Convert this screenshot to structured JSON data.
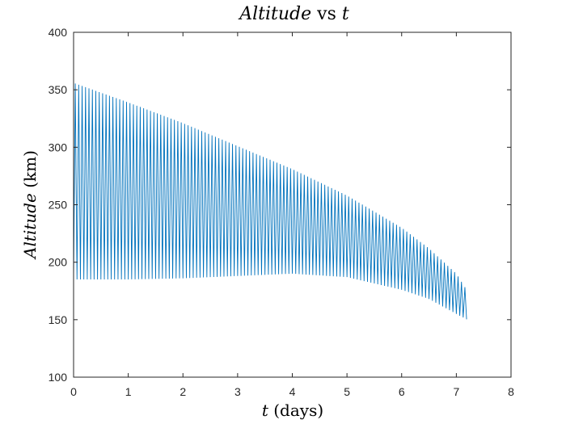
{
  "chart_data": {
    "type": "line",
    "title": {
      "italic": "Altitude",
      "rest": " vs ",
      "var": "t"
    },
    "xlabel": {
      "var": "t",
      "rest": " (days)"
    },
    "ylabel": {
      "italic": "Altitude",
      "rest": " (km)"
    },
    "xlim": [
      0,
      8
    ],
    "ylim": [
      100,
      400
    ],
    "xticks": [
      "0",
      "1",
      "2",
      "3",
      "4",
      "5",
      "6",
      "7",
      "8"
    ],
    "yticks": [
      "100",
      "150",
      "200",
      "250",
      "300",
      "350",
      "400"
    ],
    "grid": false,
    "series": [
      {
        "color": "#0072BD",
        "oscillation": {
          "t_start": 0,
          "t_end": 7.19,
          "period_days": 0.0625
        },
        "apogee_envelope": {
          "t": [
            0,
            1,
            2,
            3,
            4,
            5,
            6,
            6.5,
            7,
            7.2
          ],
          "altitude": [
            356,
            339,
            321,
            301,
            281,
            258,
            230,
            212,
            190,
            175
          ]
        },
        "perigee_envelope": {
          "t": [
            0,
            1,
            2,
            3,
            4,
            5,
            6,
            6.5,
            7,
            7.2
          ],
          "altitude": [
            185,
            185,
            186,
            188,
            190,
            187,
            176,
            168,
            155,
            150
          ]
        }
      }
    ]
  }
}
